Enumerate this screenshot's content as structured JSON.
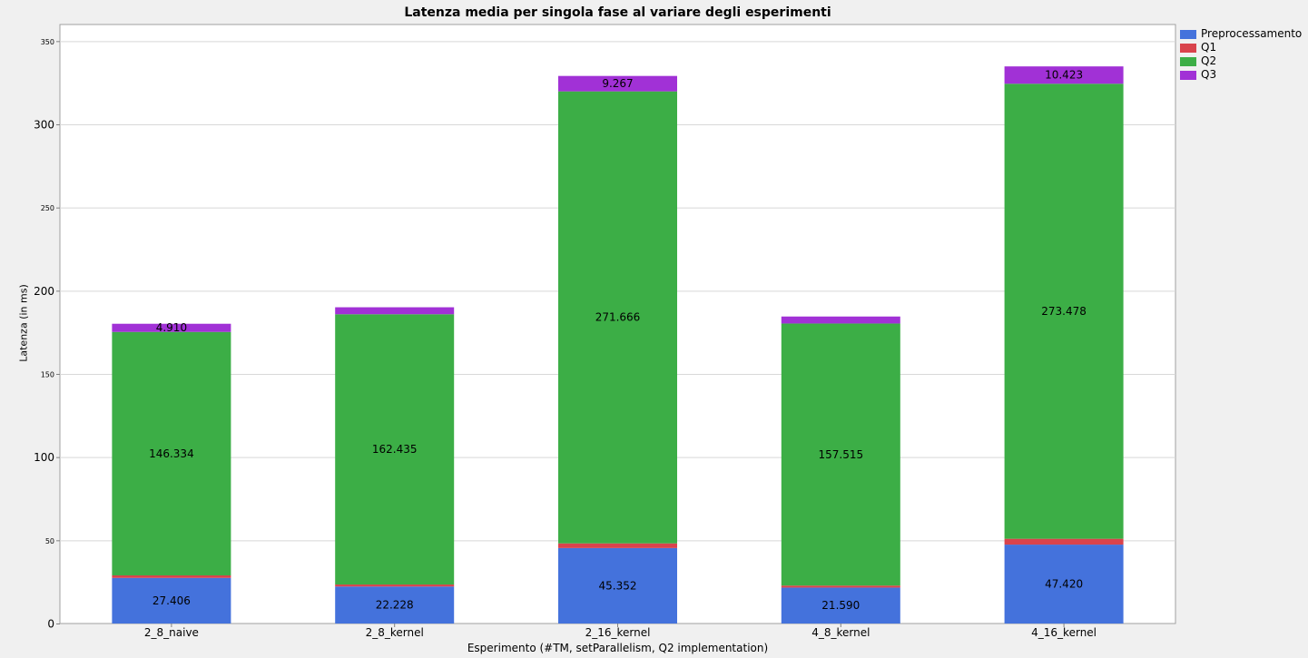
{
  "chart_data": {
    "type": "bar",
    "stacked": true,
    "title": "Latenza media per singola fase al variare degli esperimenti",
    "xlabel": "Esperimento (#TM, setParallelism, Q2 implementation)",
    "ylabel": "Latenza (in ms)",
    "ylim": [
      0,
      360
    ],
    "yticks": [
      {
        "value": 0,
        "label": "0",
        "major": true
      },
      {
        "value": 50,
        "label": "50",
        "major": false
      },
      {
        "value": 100,
        "label": "100",
        "major": true
      },
      {
        "value": 150,
        "label": "150",
        "major": false
      },
      {
        "value": 200,
        "label": "200",
        "major": true
      },
      {
        "value": 250,
        "label": "250",
        "major": false
      },
      {
        "value": 300,
        "label": "300",
        "major": true
      },
      {
        "value": 350,
        "label": "350",
        "major": false
      }
    ],
    "grid": true,
    "legend_position": "right",
    "categories": [
      "2_8_naive",
      "2_8_kernel",
      "2_16_kernel",
      "4_8_kernel",
      "4_16_kernel"
    ],
    "series": [
      {
        "name": "Preprocessamento",
        "color": "#4472dc",
        "values": [
          27.406,
          22.228,
          45.352,
          21.59,
          47.42
        ],
        "labels": [
          "27.406",
          "22.228",
          "45.352",
          "21.590",
          "47.420"
        ]
      },
      {
        "name": "Q1",
        "color": "#d9434c",
        "values": [
          1.5,
          1.2,
          2.8,
          1.2,
          3.5
        ],
        "labels": [
          "",
          "",
          "",
          "",
          ""
        ]
      },
      {
        "name": "Q2",
        "color": "#3cae46",
        "values": [
          146.334,
          162.435,
          271.666,
          157.515,
          273.478
        ],
        "labels": [
          "146.334",
          "162.435",
          "271.666",
          "157.515",
          "273.478"
        ]
      },
      {
        "name": "Q3",
        "color": "#a131d6",
        "values": [
          4.91,
          4.2,
          9.267,
          4.2,
          10.423
        ],
        "labels": [
          "4.910",
          "",
          "9.267",
          "",
          "10.423"
        ]
      }
    ]
  }
}
